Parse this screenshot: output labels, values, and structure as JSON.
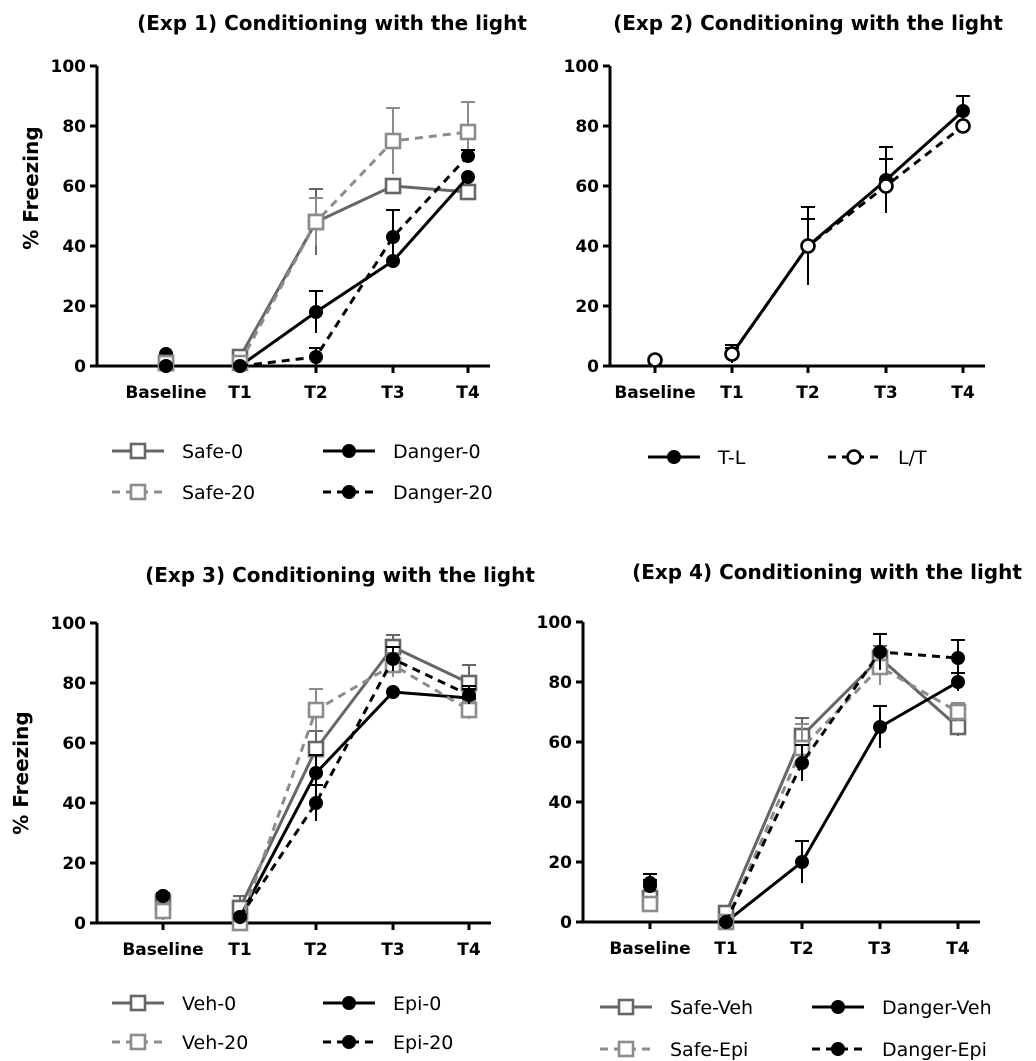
{
  "figure": {
    "ylabel": "% Freezing"
  },
  "chart_data": [
    {
      "type": "line",
      "title": "(Exp 1) Conditioning with the light",
      "xlabel": "",
      "ylabel": "% Freezing",
      "ylim": [
        0,
        100
      ],
      "yticks": [
        0,
        20,
        40,
        60,
        80,
        100
      ],
      "categories": [
        "Baseline",
        "T1",
        "T2",
        "T3",
        "T4"
      ],
      "legend_position": "bottom",
      "series": [
        {
          "name": "Safe-0",
          "values": [
            1,
            3,
            48,
            60,
            58
          ],
          "error": [
            0,
            2,
            11,
            0,
            0
          ],
          "color": "#666666",
          "marker": "square-open",
          "dash": "solid"
        },
        {
          "name": "Danger-0",
          "values": [
            4,
            0,
            18,
            35,
            63
          ],
          "error": [
            0,
            0,
            7,
            0,
            0
          ],
          "color": "#000000",
          "marker": "circle-filled",
          "dash": "solid"
        },
        {
          "name": "Safe-20",
          "values": [
            1,
            1,
            48,
            75,
            78
          ],
          "error": [
            0,
            0,
            8,
            11,
            10
          ],
          "color": "#8c8c8c",
          "marker": "square-open",
          "dash": "dashed"
        },
        {
          "name": "Danger-20",
          "values": [
            0,
            0,
            3,
            43,
            70
          ],
          "error": [
            0,
            0,
            3,
            9,
            2
          ],
          "color": "#000000",
          "marker": "circle-filled",
          "dash": "dashed"
        }
      ]
    },
    {
      "type": "line",
      "title": "(Exp 2) Conditioning with the light",
      "xlabel": "",
      "ylabel": "",
      "ylim": [
        0,
        100
      ],
      "yticks": [
        0,
        20,
        40,
        60,
        80,
        100
      ],
      "categories": [
        "Baseline",
        "T1",
        "T2",
        "T3",
        "T4"
      ],
      "legend_position": "bottom",
      "series": [
        {
          "name": "T-L",
          "values": [
            2,
            4,
            40,
            62,
            85
          ],
          "error": [
            0,
            3,
            9,
            11,
            5
          ],
          "color": "#000000",
          "marker": "circle-filled",
          "dash": "solid"
        },
        {
          "name": "L/T",
          "values": [
            2,
            4,
            40,
            60,
            80
          ],
          "error": [
            0,
            2,
            13,
            9,
            0
          ],
          "color": "#000000",
          "marker": "circle-open",
          "dash": "dashed"
        }
      ]
    },
    {
      "type": "line",
      "title": "(Exp 3) Conditioning with the light",
      "xlabel": "",
      "ylabel": "% Freezing",
      "ylim": [
        0,
        100
      ],
      "yticks": [
        0,
        20,
        40,
        60,
        80,
        100
      ],
      "categories": [
        "Baseline",
        "T1",
        "T2",
        "T3",
        "T4"
      ],
      "legend_position": "bottom",
      "series": [
        {
          "name": "Veh-0",
          "values": [
            7,
            5,
            58,
            92,
            80
          ],
          "error": [
            3,
            4,
            6,
            4,
            6
          ],
          "color": "#666666",
          "marker": "square-open",
          "dash": "solid"
        },
        {
          "name": "Epi-0",
          "values": [
            9,
            2,
            50,
            77,
            75
          ],
          "error": [
            1,
            0,
            6,
            0,
            3
          ],
          "color": "#000000",
          "marker": "circle-filled",
          "dash": "solid"
        },
        {
          "name": "Veh-20",
          "values": [
            4,
            0,
            71,
            86,
            71
          ],
          "error": [
            3,
            0,
            7,
            4,
            3
          ],
          "color": "#8c8c8c",
          "marker": "square-open",
          "dash": "dashed"
        },
        {
          "name": "Epi-20",
          "values": [
            9,
            2,
            40,
            88,
            76
          ],
          "error": [
            1,
            0,
            6,
            4,
            3
          ],
          "color": "#000000",
          "marker": "circle-filled",
          "dash": "dashed"
        }
      ]
    },
    {
      "type": "line",
      "title": "(Exp 4) Conditioning with the light",
      "xlabel": "",
      "ylabel": "",
      "ylim": [
        0,
        100
      ],
      "yticks": [
        0,
        20,
        40,
        60,
        80,
        100
      ],
      "categories": [
        "Baseline",
        "T1",
        "T2",
        "T3",
        "T4"
      ],
      "legend_position": "bottom",
      "series": [
        {
          "name": "Safe-Veh",
          "values": [
            8,
            3,
            62,
            88,
            65
          ],
          "error": [
            0,
            2,
            6,
            4,
            3
          ],
          "color": "#666666",
          "marker": "square-open",
          "dash": "solid"
        },
        {
          "name": "Danger-Veh",
          "values": [
            13,
            0,
            20,
            65,
            80
          ],
          "error": [
            3,
            0,
            7,
            7,
            3
          ],
          "color": "#000000",
          "marker": "circle-filled",
          "dash": "solid"
        },
        {
          "name": "Safe-Epi",
          "values": [
            6,
            0,
            58,
            85,
            70
          ],
          "error": [
            2,
            0,
            8,
            6,
            3
          ],
          "color": "#8c8c8c",
          "marker": "square-open",
          "dash": "dashed"
        },
        {
          "name": "Danger-Epi",
          "values": [
            12,
            0,
            53,
            90,
            88
          ],
          "error": [
            2,
            0,
            6,
            6,
            6
          ],
          "color": "#000000",
          "marker": "circle-filled",
          "dash": "dashed"
        }
      ]
    }
  ]
}
